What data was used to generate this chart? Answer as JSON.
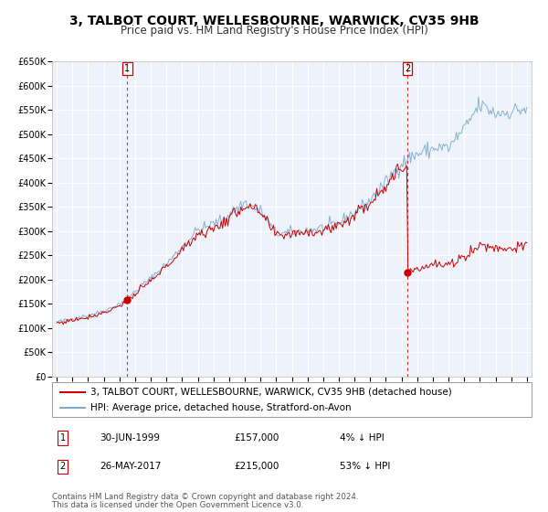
{
  "title": "3, TALBOT COURT, WELLESBOURNE, WARWICK, CV35 9HB",
  "subtitle": "Price paid vs. HM Land Registry's House Price Index (HPI)",
  "legend_line1": "3, TALBOT COURT, WELLESBOURNE, WARWICK, CV35 9HB (detached house)",
  "legend_line2": "HPI: Average price, detached house, Stratford-on-Avon",
  "annotation1_label": "1",
  "annotation1_date": "30-JUN-1999",
  "annotation1_price": "£157,000",
  "annotation1_hpi": "4% ↓ HPI",
  "annotation2_label": "2",
  "annotation2_date": "26-MAY-2017",
  "annotation2_price": "£215,000",
  "annotation2_hpi": "53% ↓ HPI",
  "footer1": "Contains HM Land Registry data © Crown copyright and database right 2024.",
  "footer2": "This data is licensed under the Open Government Licence v3.0.",
  "sale1_date_num": 1999.5,
  "sale1_price": 157000,
  "sale2_date_num": 2017.38,
  "sale2_price": 215000,
  "vline1_date_num": 1999.5,
  "vline2_date_num": 2017.38,
  "ylim_max": 650000,
  "xlim_start": 1994.7,
  "xlim_end": 2025.3,
  "red_color": "#cc0000",
  "blue_color": "#7aaacc",
  "background_color": "#eef2fa",
  "grid_color": "#ffffff",
  "title_fontsize": 10,
  "subtitle_fontsize": 8.5,
  "tick_fontsize": 7,
  "legend_fontsize": 7.5,
  "annotation_fontsize": 7.5,
  "footer_fontsize": 6.2,
  "box_color": "#cc0000",
  "hpi_key_years": [
    1995,
    1996,
    1997,
    1998,
    1999,
    2000,
    2001,
    2002,
    2003,
    2004,
    2005,
    2006,
    2007,
    2008,
    2009,
    2010,
    2011,
    2012,
    2013,
    2014,
    2015,
    2016,
    2017,
    2018,
    2019,
    2020,
    2021,
    2022,
    2023,
    2024,
    2025
  ],
  "hpi_key_vals": [
    112000,
    118000,
    125000,
    133000,
    148000,
    172000,
    198000,
    228000,
    265000,
    300000,
    310000,
    330000,
    355000,
    340000,
    295000,
    300000,
    305000,
    308000,
    320000,
    340000,
    365000,
    400000,
    435000,
    455000,
    470000,
    468000,
    510000,
    560000,
    540000,
    548000,
    550000
  ]
}
